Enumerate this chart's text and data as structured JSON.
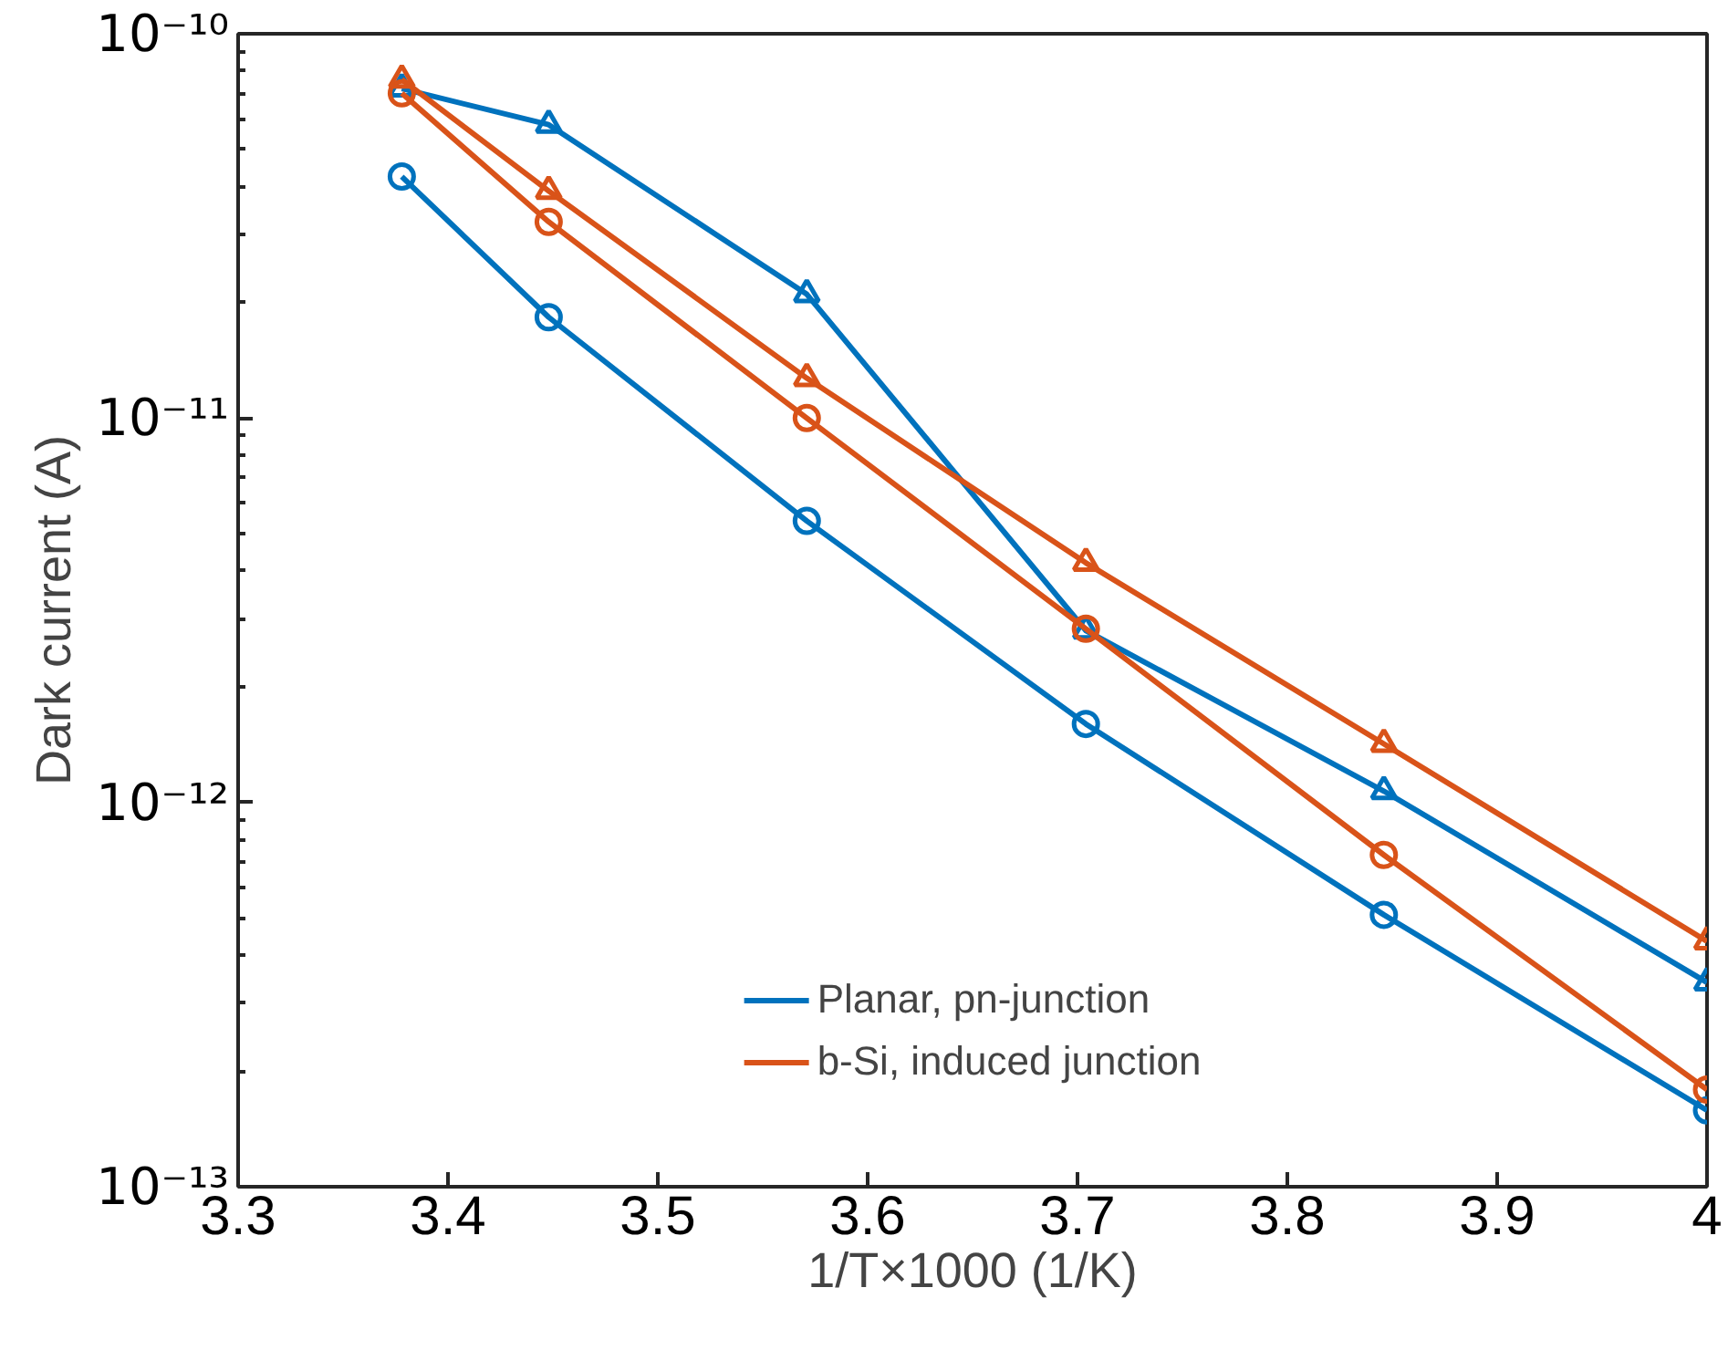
{
  "chart_data": {
    "type": "line",
    "xlabel": "1/T×1000 (1/K)",
    "ylabel": "Dark current (A)",
    "x": [
      3.378,
      3.448,
      3.571,
      3.704,
      3.846,
      4.0
    ],
    "series": [
      {
        "name": "Planar, pn-junction",
        "color": "#0072bd",
        "marker": "circle",
        "values": [
          4.25e-11,
          1.83e-11,
          5.4e-12,
          1.6e-12,
          5.1e-13,
          1.58e-13
        ]
      },
      {
        "color": "#0072bd",
        "marker": "triangle",
        "values": [
          7.2e-11,
          5.8e-11,
          2.1e-11,
          2.8e-12,
          1.07e-12,
          3.4e-13
        ]
      },
      {
        "name": "b-Si, induced junction",
        "color": "#d95319",
        "marker": "circle",
        "values": [
          7e-11,
          3.24e-11,
          1e-11,
          2.83e-12,
          7.3e-13,
          1.79e-13
        ]
      },
      {
        "color": "#d95319",
        "marker": "triangle",
        "values": [
          7.6e-11,
          3.9e-11,
          1.27e-11,
          4.2e-12,
          1.42e-12,
          4.35e-13
        ]
      }
    ],
    "xlim": [
      3.3,
      4.0
    ],
    "xticks": [
      3.3,
      3.4,
      3.5,
      3.6,
      3.7,
      3.8,
      3.9,
      4
    ],
    "ylim": [
      1e-13,
      1e-10
    ],
    "yticks": [
      {
        "value": 1e-13,
        "label": "10⁻¹³"
      },
      {
        "value": 1e-12,
        "label": "10⁻¹²"
      },
      {
        "value": 1e-11,
        "label": "10⁻¹¹"
      },
      {
        "value": 1e-10,
        "label": "10⁻¹⁰"
      }
    ],
    "log": "y",
    "grid": false,
    "legend": "bottom",
    "line_style": "solid"
  }
}
